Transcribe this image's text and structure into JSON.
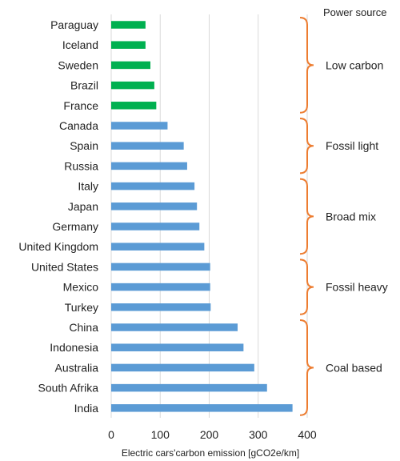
{
  "chart_data": {
    "type": "bar",
    "orientation": "horizontal",
    "categories": [
      "Paraguay",
      "Iceland",
      "Sweden",
      "Brazil",
      "France",
      "Canada",
      "Spain",
      "Russia",
      "Italy",
      "Japan",
      "Germany",
      "United Kingdom",
      "United States",
      "Mexico",
      "Turkey",
      "China",
      "Indonesia",
      "Australia",
      "South Afrika",
      "India"
    ],
    "values": [
      70,
      70,
      80,
      88,
      92,
      115,
      148,
      155,
      170,
      175,
      180,
      190,
      202,
      202,
      203,
      258,
      270,
      292,
      318,
      370
    ],
    "colors": [
      "#00b050",
      "#00b050",
      "#00b050",
      "#00b050",
      "#00b050",
      "#5b9bd5",
      "#5b9bd5",
      "#5b9bd5",
      "#5b9bd5",
      "#5b9bd5",
      "#5b9bd5",
      "#5b9bd5",
      "#5b9bd5",
      "#5b9bd5",
      "#5b9bd5",
      "#5b9bd5",
      "#5b9bd5",
      "#5b9bd5",
      "#5b9bd5",
      "#5b9bd5"
    ],
    "xlabel": "Electric cars'carbon emission [gCO2e/km]",
    "xlim": [
      0,
      400
    ],
    "xticks": [
      0,
      100,
      200,
      300,
      400
    ],
    "grid": "vertical",
    "legend_title": "Power source",
    "groups": [
      {
        "label": "Low carbon",
        "start": 0,
        "end": 4
      },
      {
        "label": "Fossil light",
        "start": 5,
        "end": 7
      },
      {
        "label": "Broad mix",
        "start": 8,
        "end": 11
      },
      {
        "label": "Fossil heavy",
        "start": 12,
        "end": 14
      },
      {
        "label": "Coal based",
        "start": 15,
        "end": 19
      }
    ],
    "brace_color": "#ed7d31",
    "grid_color": "#d9d9d9"
  }
}
